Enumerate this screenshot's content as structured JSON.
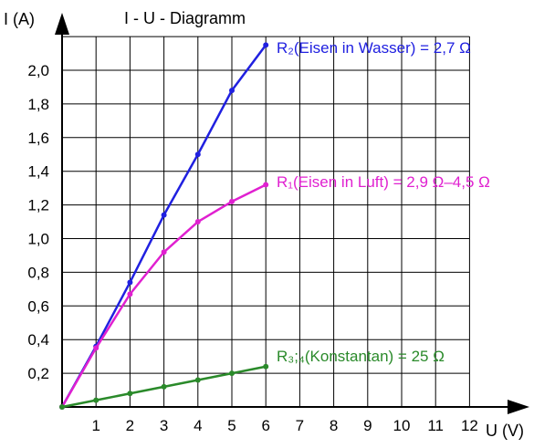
{
  "chart_data": {
    "type": "line",
    "title": "I - U - Diagramm",
    "xlabel": "U (V)",
    "ylabel": "I (A)",
    "xlim": [
      0,
      12
    ],
    "ylim": [
      0,
      2.2
    ],
    "grid": true,
    "x_ticks": [
      "1",
      "2",
      "3",
      "4",
      "5",
      "6",
      "7",
      "8",
      "9",
      "10",
      "11",
      "12"
    ],
    "y_ticks": [
      "0,2",
      "0,4",
      "0,6",
      "0,8",
      "1,0",
      "1,2",
      "1,4",
      "1,6",
      "1,8",
      "2,0"
    ],
    "series": [
      {
        "label": "R₂(Eisen in Wasser) = 2,7 Ω",
        "color": "#2020e0",
        "x": [
          0,
          1,
          2,
          3,
          4,
          5,
          6
        ],
        "y": [
          0,
          0.36,
          0.74,
          1.14,
          1.5,
          1.88,
          2.15
        ]
      },
      {
        "label": "R₁(Eisen in Luft) = 2,9 Ω–4,5 Ω",
        "color": "#e020d0",
        "x": [
          0,
          1,
          2,
          3,
          4,
          5,
          6
        ],
        "y": [
          0,
          0.35,
          0.67,
          0.92,
          1.1,
          1.22,
          1.32
        ]
      },
      {
        "label": "R₃;₄(Konstantan) = 25 Ω",
        "color": "#2a8a2a",
        "x": [
          0,
          1,
          2,
          3,
          4,
          5,
          6
        ],
        "y": [
          0,
          0.04,
          0.08,
          0.12,
          0.16,
          0.2,
          0.24
        ]
      }
    ]
  }
}
